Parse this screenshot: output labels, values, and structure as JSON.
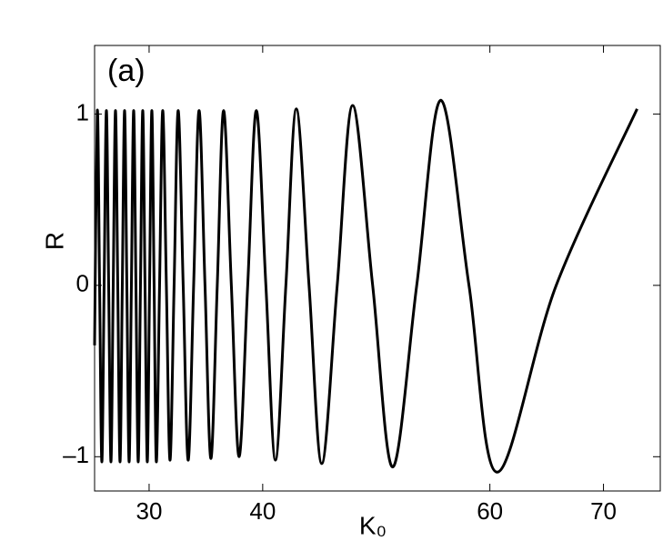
{
  "chart_data": {
    "type": "line",
    "x_label": "K₀",
    "y_label": "R",
    "annotation": "(a)",
    "color": "#000000",
    "x": [
      25.2,
      25.44,
      25.64,
      25.84,
      26.04,
      26.24,
      26.44,
      26.64,
      26.84,
      27.04,
      27.24,
      27.44,
      27.64,
      27.84,
      28.04,
      28.24,
      28.44,
      28.64,
      28.84,
      29.04,
      29.24,
      29.44,
      29.64,
      29.84,
      30.04,
      30.24,
      30.44,
      30.64,
      30.92,
      31.2,
      31.52,
      31.84,
      32.2,
      32.56,
      33.0,
      33.44,
      33.92,
      34.4,
      34.92,
      35.44,
      36.0,
      36.56,
      37.24,
      37.92,
      38.68,
      39.44,
      40.28,
      41.12,
      42.04,
      42.96,
      44.08,
      45.2,
      46.56,
      47.92,
      49.68,
      51.44,
      53.56,
      55.68,
      58.16,
      60.64,
      65.84,
      72.96
    ],
    "values": [
      -0.35,
      1.02,
      0,
      -1.03,
      0,
      1.02,
      0,
      -1.03,
      0,
      1.02,
      0,
      -1.03,
      0,
      1.02,
      0,
      -1.03,
      0,
      1.02,
      0,
      -1.03,
      0,
      1.02,
      0,
      -1.03,
      0,
      1.02,
      0,
      -1.03,
      0,
      1.02,
      0,
      -1.02,
      0,
      1.02,
      0,
      -1.02,
      0,
      1.02,
      0,
      -1.01,
      0,
      1.02,
      0,
      -1.0,
      0,
      1.02,
      0,
      -1.02,
      0,
      1.03,
      0,
      -1.04,
      0,
      1.05,
      0,
      -1.06,
      0,
      1.08,
      0,
      -1.09,
      0,
      1.03
    ],
    "xlim": [
      25.2,
      75
    ],
    "xticks": [
      30,
      40,
      60,
      70
    ],
    "ylim": [
      -1.2,
      1.4
    ],
    "yticks": [
      {
        "value": -1,
        "label": "–1"
      },
      0,
      1
    ]
  }
}
